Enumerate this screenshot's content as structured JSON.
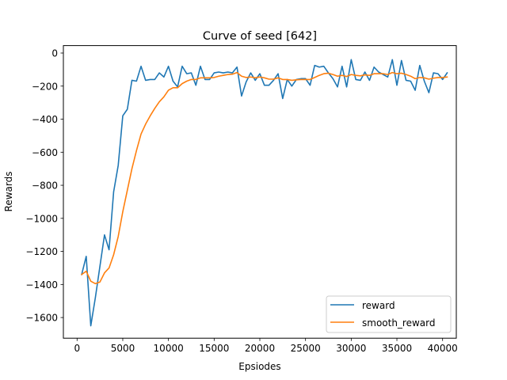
{
  "chart_data": {
    "type": "line",
    "title": "Curve of seed [642]",
    "xlabel": "Epsiodes",
    "ylabel": "Rewards",
    "xlim": [
      -1500,
      41500
    ],
    "ylim": [
      -1725,
      45
    ],
    "x_ticks": [
      0,
      5000,
      10000,
      15000,
      20000,
      25000,
      30000,
      35000,
      40000
    ],
    "y_ticks": [
      0,
      -200,
      -400,
      -600,
      -800,
      -1000,
      -1200,
      -1400,
      -1600
    ],
    "x_tick_labels": [
      "0",
      "5000",
      "10000",
      "15000",
      "20000",
      "25000",
      "30000",
      "35000",
      "40000"
    ],
    "y_tick_labels": [
      "0",
      "−200",
      "−400",
      "−600",
      "−800",
      "−1000",
      "−1200",
      "−1400",
      "−1600"
    ],
    "grid": false,
    "legend_position": "lower-right",
    "series": [
      {
        "name": "reward",
        "color": "#1f77b4",
        "points": [
          [
            500,
            -1340
          ],
          [
            1000,
            -1230
          ],
          [
            1500,
            -1650
          ],
          [
            2000,
            -1480
          ],
          [
            2500,
            -1290
          ],
          [
            3000,
            -1100
          ],
          [
            3500,
            -1190
          ],
          [
            4000,
            -840
          ],
          [
            4500,
            -680
          ],
          [
            5000,
            -380
          ],
          [
            5500,
            -340
          ],
          [
            6000,
            -165
          ],
          [
            6500,
            -170
          ],
          [
            7000,
            -80
          ],
          [
            7500,
            -165
          ],
          [
            8000,
            -160
          ],
          [
            8500,
            -160
          ],
          [
            9000,
            -120
          ],
          [
            9500,
            -145
          ],
          [
            10000,
            -80
          ],
          [
            10500,
            -170
          ],
          [
            11000,
            -205
          ],
          [
            11500,
            -80
          ],
          [
            12000,
            -125
          ],
          [
            12500,
            -120
          ],
          [
            13000,
            -195
          ],
          [
            13500,
            -80
          ],
          [
            14000,
            -160
          ],
          [
            14500,
            -160
          ],
          [
            15000,
            -120
          ],
          [
            15500,
            -115
          ],
          [
            16000,
            -120
          ],
          [
            16500,
            -115
          ],
          [
            17000,
            -120
          ],
          [
            17500,
            -85
          ],
          [
            18000,
            -260
          ],
          [
            18500,
            -175
          ],
          [
            19000,
            -120
          ],
          [
            19500,
            -165
          ],
          [
            20000,
            -125
          ],
          [
            20500,
            -195
          ],
          [
            21000,
            -195
          ],
          [
            21500,
            -165
          ],
          [
            22000,
            -125
          ],
          [
            22500,
            -275
          ],
          [
            23000,
            -160
          ],
          [
            23500,
            -200
          ],
          [
            24000,
            -160
          ],
          [
            24500,
            -155
          ],
          [
            25000,
            -155
          ],
          [
            25500,
            -195
          ],
          [
            26000,
            -75
          ],
          [
            26500,
            -85
          ],
          [
            27000,
            -80
          ],
          [
            27500,
            -120
          ],
          [
            28000,
            -155
          ],
          [
            28500,
            -205
          ],
          [
            29000,
            -80
          ],
          [
            29500,
            -205
          ],
          [
            30000,
            -40
          ],
          [
            30500,
            -160
          ],
          [
            31000,
            -165
          ],
          [
            31500,
            -115
          ],
          [
            32000,
            -165
          ],
          [
            32500,
            -85
          ],
          [
            33000,
            -115
          ],
          [
            33500,
            -130
          ],
          [
            34000,
            -145
          ],
          [
            34500,
            -40
          ],
          [
            35000,
            -195
          ],
          [
            35500,
            -45
          ],
          [
            36000,
            -165
          ],
          [
            36500,
            -170
          ],
          [
            37000,
            -225
          ],
          [
            37500,
            -75
          ],
          [
            38000,
            -170
          ],
          [
            38500,
            -240
          ],
          [
            39000,
            -120
          ],
          [
            39500,
            -125
          ],
          [
            40000,
            -160
          ],
          [
            40500,
            -120
          ]
        ]
      },
      {
        "name": "smooth_reward",
        "color": "#ff7f0e",
        "points": [
          [
            500,
            -1340
          ],
          [
            1000,
            -1320
          ],
          [
            1500,
            -1380
          ],
          [
            2000,
            -1395
          ],
          [
            2500,
            -1385
          ],
          [
            3000,
            -1330
          ],
          [
            3500,
            -1300
          ],
          [
            4000,
            -1220
          ],
          [
            4500,
            -1110
          ],
          [
            5000,
            -960
          ],
          [
            5500,
            -830
          ],
          [
            6000,
            -700
          ],
          [
            6500,
            -590
          ],
          [
            7000,
            -490
          ],
          [
            7500,
            -430
          ],
          [
            8000,
            -380
          ],
          [
            8500,
            -335
          ],
          [
            9000,
            -295
          ],
          [
            9500,
            -265
          ],
          [
            10000,
            -225
          ],
          [
            10500,
            -210
          ],
          [
            11000,
            -210
          ],
          [
            11500,
            -185
          ],
          [
            12000,
            -170
          ],
          [
            12500,
            -160
          ],
          [
            13000,
            -160
          ],
          [
            13500,
            -150
          ],
          [
            14000,
            -150
          ],
          [
            14500,
            -150
          ],
          [
            15000,
            -148
          ],
          [
            15500,
            -140
          ],
          [
            16000,
            -135
          ],
          [
            16500,
            -130
          ],
          [
            17000,
            -128
          ],
          [
            17500,
            -118
          ],
          [
            18000,
            -140
          ],
          [
            18500,
            -148
          ],
          [
            19000,
            -145
          ],
          [
            19500,
            -150
          ],
          [
            20000,
            -145
          ],
          [
            20500,
            -150
          ],
          [
            21000,
            -158
          ],
          [
            21500,
            -158
          ],
          [
            22000,
            -150
          ],
          [
            22500,
            -160
          ],
          [
            23000,
            -160
          ],
          [
            23500,
            -165
          ],
          [
            24000,
            -162
          ],
          [
            24500,
            -160
          ],
          [
            25000,
            -160
          ],
          [
            25500,
            -160
          ],
          [
            26000,
            -148
          ],
          [
            26500,
            -135
          ],
          [
            27000,
            -125
          ],
          [
            27500,
            -122
          ],
          [
            28000,
            -130
          ],
          [
            28500,
            -140
          ],
          [
            29000,
            -135
          ],
          [
            29500,
            -142
          ],
          [
            30000,
            -130
          ],
          [
            30500,
            -135
          ],
          [
            31000,
            -138
          ],
          [
            31500,
            -132
          ],
          [
            32000,
            -135
          ],
          [
            32500,
            -125
          ],
          [
            33000,
            -125
          ],
          [
            33500,
            -125
          ],
          [
            34000,
            -130
          ],
          [
            34500,
            -118
          ],
          [
            35000,
            -125
          ],
          [
            35500,
            -122
          ],
          [
            36000,
            -130
          ],
          [
            36500,
            -140
          ],
          [
            37000,
            -155
          ],
          [
            37500,
            -148
          ],
          [
            38000,
            -150
          ],
          [
            38500,
            -158
          ],
          [
            39000,
            -152
          ],
          [
            39500,
            -148
          ],
          [
            40000,
            -148
          ],
          [
            40500,
            -145
          ]
        ]
      }
    ]
  }
}
